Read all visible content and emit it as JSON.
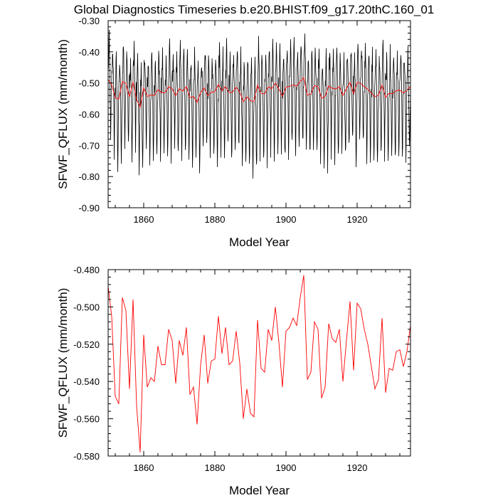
{
  "title": "Global Diagnostics Timeseries b.e20.BHIST.f09_g17.20thC.160_01",
  "chart_data": [
    {
      "type": "line",
      "title": "Global Diagnostics Timeseries b.e20.BHIST.f09_g17.20thC.160_01",
      "xlabel": "Model Year",
      "ylabel": "SFWF_QFLUX (mm/month)",
      "xlim": [
        1850,
        1935
      ],
      "ylim": [
        -0.9,
        -0.3
      ],
      "xticks": [
        1860,
        1880,
        1900,
        1920
      ],
      "yticks": [
        -0.9,
        -0.8,
        -0.7,
        -0.6,
        -0.5,
        -0.4,
        -0.3
      ],
      "ytick_labels": [
        "-0.90",
        "-0.80",
        "-0.70",
        "-0.60",
        "-0.50",
        "-0.40",
        "-0.30"
      ],
      "series": [
        {
          "color": "#000000",
          "kind": "monthly",
          "x_start": 1850.04,
          "x_step": 0.0833333,
          "annual_means": [
            -0.489,
            -0.505,
            -0.548,
            -0.552,
            -0.495,
            -0.502,
            -0.544,
            -0.496,
            -0.553,
            -0.578,
            -0.515,
            -0.543,
            -0.538,
            -0.54,
            -0.521,
            -0.531,
            -0.531,
            -0.512,
            -0.518,
            -0.541,
            -0.518,
            -0.526,
            -0.511,
            -0.547,
            -0.543,
            -0.563,
            -0.531,
            -0.515,
            -0.541,
            -0.529,
            -0.528,
            -0.505,
            -0.525,
            -0.511,
            -0.531,
            -0.529,
            -0.513,
            -0.53,
            -0.56,
            -0.544,
            -0.557,
            -0.559,
            -0.507,
            -0.533,
            -0.535,
            -0.512,
            -0.518,
            -0.5,
            -0.519,
            -0.543,
            -0.513,
            -0.511,
            -0.506,
            -0.51,
            -0.495,
            -0.483,
            -0.539,
            -0.535,
            -0.508,
            -0.512,
            -0.549,
            -0.543,
            -0.509,
            -0.517,
            -0.519,
            -0.512,
            -0.54,
            -0.518,
            -0.497,
            -0.534,
            -0.498,
            -0.501,
            -0.512,
            -0.52,
            -0.532,
            -0.544,
            -0.539,
            -0.506,
            -0.546,
            -0.533,
            -0.534,
            -0.524,
            -0.523,
            -0.532,
            -0.524,
            -0.51
          ],
          "seasonal_amplitude": 0.13,
          "seasonal_peak_offset": 0.12,
          "seasonal_trough_offset": -0.21
        },
        {
          "color": "#ff0000",
          "kind": "annual",
          "x": [
            1850,
            1851,
            1852,
            1853,
            1854,
            1855,
            1856,
            1857,
            1858,
            1859,
            1860,
            1861,
            1862,
            1863,
            1864,
            1865,
            1866,
            1867,
            1868,
            1869,
            1870,
            1871,
            1872,
            1873,
            1874,
            1875,
            1876,
            1877,
            1878,
            1879,
            1880,
            1881,
            1882,
            1883,
            1884,
            1885,
            1886,
            1887,
            1888,
            1889,
            1890,
            1891,
            1892,
            1893,
            1894,
            1895,
            1896,
            1897,
            1898,
            1899,
            1900,
            1901,
            1902,
            1903,
            1904,
            1905,
            1906,
            1907,
            1908,
            1909,
            1910,
            1911,
            1912,
            1913,
            1914,
            1915,
            1916,
            1917,
            1918,
            1919,
            1920,
            1921,
            1922,
            1923,
            1924,
            1925,
            1926,
            1927,
            1928,
            1929,
            1930,
            1931,
            1932,
            1933,
            1934,
            1935
          ],
          "values": [
            -0.489,
            -0.505,
            -0.548,
            -0.552,
            -0.495,
            -0.502,
            -0.544,
            -0.496,
            -0.553,
            -0.578,
            -0.515,
            -0.543,
            -0.538,
            -0.54,
            -0.521,
            -0.531,
            -0.531,
            -0.512,
            -0.518,
            -0.541,
            -0.518,
            -0.526,
            -0.511,
            -0.547,
            -0.543,
            -0.563,
            -0.531,
            -0.515,
            -0.541,
            -0.529,
            -0.528,
            -0.505,
            -0.525,
            -0.511,
            -0.531,
            -0.529,
            -0.513,
            -0.53,
            -0.56,
            -0.544,
            -0.557,
            -0.559,
            -0.507,
            -0.533,
            -0.535,
            -0.512,
            -0.518,
            -0.5,
            -0.519,
            -0.543,
            -0.513,
            -0.511,
            -0.506,
            -0.51,
            -0.495,
            -0.483,
            -0.539,
            -0.535,
            -0.508,
            -0.512,
            -0.549,
            -0.543,
            -0.509,
            -0.517,
            -0.519,
            -0.512,
            -0.54,
            -0.518,
            -0.497,
            -0.534,
            -0.498,
            -0.501,
            -0.512,
            -0.52,
            -0.532,
            -0.544,
            -0.539,
            -0.506,
            -0.546,
            -0.533,
            -0.534,
            -0.524,
            -0.523,
            -0.532,
            -0.524,
            -0.51
          ]
        }
      ]
    },
    {
      "type": "line",
      "title": "",
      "xlabel": "Model Year",
      "ylabel": "SFWF_QFLUX (mm/month)",
      "xlim": [
        1850,
        1935
      ],
      "ylim": [
        -0.58,
        -0.48
      ],
      "xticks": [
        1860,
        1880,
        1900,
        1920
      ],
      "yticks": [
        -0.58,
        -0.56,
        -0.54,
        -0.52,
        -0.5,
        -0.48
      ],
      "ytick_labels": [
        "-0.580",
        "-0.560",
        "-0.540",
        "-0.520",
        "-0.500",
        "-0.480"
      ],
      "series": [
        {
          "color": "#ff0000",
          "kind": "annual",
          "x": [
            1850,
            1851,
            1852,
            1853,
            1854,
            1855,
            1856,
            1857,
            1858,
            1859,
            1860,
            1861,
            1862,
            1863,
            1864,
            1865,
            1866,
            1867,
            1868,
            1869,
            1870,
            1871,
            1872,
            1873,
            1874,
            1875,
            1876,
            1877,
            1878,
            1879,
            1880,
            1881,
            1882,
            1883,
            1884,
            1885,
            1886,
            1887,
            1888,
            1889,
            1890,
            1891,
            1892,
            1893,
            1894,
            1895,
            1896,
            1897,
            1898,
            1899,
            1900,
            1901,
            1902,
            1903,
            1904,
            1905,
            1906,
            1907,
            1908,
            1909,
            1910,
            1911,
            1912,
            1913,
            1914,
            1915,
            1916,
            1917,
            1918,
            1919,
            1920,
            1921,
            1922,
            1923,
            1924,
            1925,
            1926,
            1927,
            1928,
            1929,
            1930,
            1931,
            1932,
            1933,
            1934,
            1935
          ],
          "values": [
            -0.489,
            -0.505,
            -0.548,
            -0.552,
            -0.495,
            -0.502,
            -0.544,
            -0.496,
            -0.553,
            -0.578,
            -0.515,
            -0.543,
            -0.538,
            -0.54,
            -0.521,
            -0.531,
            -0.531,
            -0.512,
            -0.518,
            -0.541,
            -0.518,
            -0.526,
            -0.511,
            -0.547,
            -0.543,
            -0.563,
            -0.531,
            -0.515,
            -0.541,
            -0.529,
            -0.528,
            -0.505,
            -0.525,
            -0.511,
            -0.531,
            -0.529,
            -0.513,
            -0.53,
            -0.56,
            -0.544,
            -0.557,
            -0.559,
            -0.507,
            -0.533,
            -0.535,
            -0.512,
            -0.518,
            -0.5,
            -0.519,
            -0.543,
            -0.513,
            -0.511,
            -0.506,
            -0.51,
            -0.495,
            -0.483,
            -0.539,
            -0.535,
            -0.508,
            -0.512,
            -0.549,
            -0.543,
            -0.509,
            -0.517,
            -0.519,
            -0.512,
            -0.54,
            -0.518,
            -0.497,
            -0.534,
            -0.498,
            -0.501,
            -0.512,
            -0.52,
            -0.532,
            -0.544,
            -0.539,
            -0.506,
            -0.546,
            -0.533,
            -0.534,
            -0.524,
            -0.523,
            -0.532,
            -0.524,
            -0.51
          ]
        }
      ]
    }
  ]
}
